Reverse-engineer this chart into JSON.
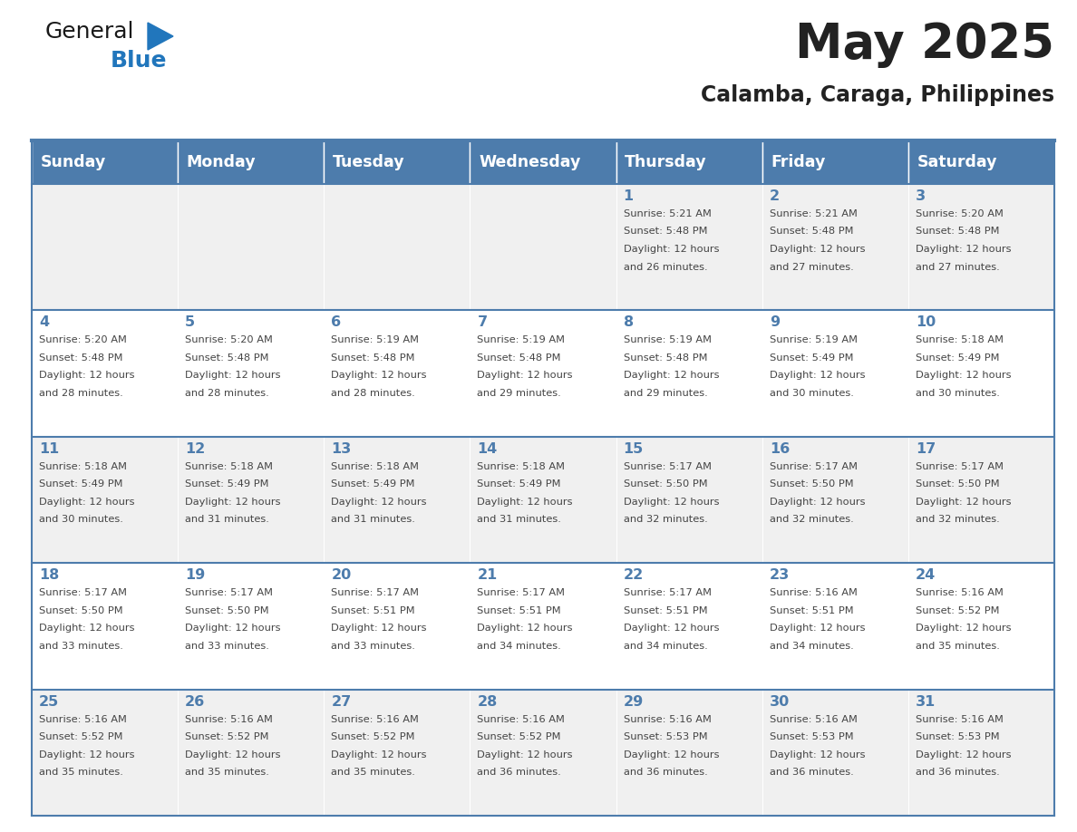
{
  "title": "May 2025",
  "subtitle": "Calamba, Caraga, Philippines",
  "header_bg_color": "#4d7cac",
  "header_text_color": "#ffffff",
  "weekdays": [
    "Sunday",
    "Monday",
    "Tuesday",
    "Wednesday",
    "Thursday",
    "Friday",
    "Saturday"
  ],
  "row_colors": [
    "#f0f0f0",
    "#ffffff"
  ],
  "line_color": "#4d7cac",
  "text_color": "#444444",
  "day_num_color": "#4d7cac",
  "calendar_data": [
    [
      {
        "day": "",
        "sunrise": "",
        "sunset": "",
        "daylight": ""
      },
      {
        "day": "",
        "sunrise": "",
        "sunset": "",
        "daylight": ""
      },
      {
        "day": "",
        "sunrise": "",
        "sunset": "",
        "daylight": ""
      },
      {
        "day": "",
        "sunrise": "",
        "sunset": "",
        "daylight": ""
      },
      {
        "day": "1",
        "sunrise": "5:21 AM",
        "sunset": "5:48 PM",
        "daylight": "12 hours and 26 minutes."
      },
      {
        "day": "2",
        "sunrise": "5:21 AM",
        "sunset": "5:48 PM",
        "daylight": "12 hours and 27 minutes."
      },
      {
        "day": "3",
        "sunrise": "5:20 AM",
        "sunset": "5:48 PM",
        "daylight": "12 hours and 27 minutes."
      }
    ],
    [
      {
        "day": "4",
        "sunrise": "5:20 AM",
        "sunset": "5:48 PM",
        "daylight": "12 hours and 28 minutes."
      },
      {
        "day": "5",
        "sunrise": "5:20 AM",
        "sunset": "5:48 PM",
        "daylight": "12 hours and 28 minutes."
      },
      {
        "day": "6",
        "sunrise": "5:19 AM",
        "sunset": "5:48 PM",
        "daylight": "12 hours and 28 minutes."
      },
      {
        "day": "7",
        "sunrise": "5:19 AM",
        "sunset": "5:48 PM",
        "daylight": "12 hours and 29 minutes."
      },
      {
        "day": "8",
        "sunrise": "5:19 AM",
        "sunset": "5:48 PM",
        "daylight": "12 hours and 29 minutes."
      },
      {
        "day": "9",
        "sunrise": "5:19 AM",
        "sunset": "5:49 PM",
        "daylight": "12 hours and 30 minutes."
      },
      {
        "day": "10",
        "sunrise": "5:18 AM",
        "sunset": "5:49 PM",
        "daylight": "12 hours and 30 minutes."
      }
    ],
    [
      {
        "day": "11",
        "sunrise": "5:18 AM",
        "sunset": "5:49 PM",
        "daylight": "12 hours and 30 minutes."
      },
      {
        "day": "12",
        "sunrise": "5:18 AM",
        "sunset": "5:49 PM",
        "daylight": "12 hours and 31 minutes."
      },
      {
        "day": "13",
        "sunrise": "5:18 AM",
        "sunset": "5:49 PM",
        "daylight": "12 hours and 31 minutes."
      },
      {
        "day": "14",
        "sunrise": "5:18 AM",
        "sunset": "5:49 PM",
        "daylight": "12 hours and 31 minutes."
      },
      {
        "day": "15",
        "sunrise": "5:17 AM",
        "sunset": "5:50 PM",
        "daylight": "12 hours and 32 minutes."
      },
      {
        "day": "16",
        "sunrise": "5:17 AM",
        "sunset": "5:50 PM",
        "daylight": "12 hours and 32 minutes."
      },
      {
        "day": "17",
        "sunrise": "5:17 AM",
        "sunset": "5:50 PM",
        "daylight": "12 hours and 32 minutes."
      }
    ],
    [
      {
        "day": "18",
        "sunrise": "5:17 AM",
        "sunset": "5:50 PM",
        "daylight": "12 hours and 33 minutes."
      },
      {
        "day": "19",
        "sunrise": "5:17 AM",
        "sunset": "5:50 PM",
        "daylight": "12 hours and 33 minutes."
      },
      {
        "day": "20",
        "sunrise": "5:17 AM",
        "sunset": "5:51 PM",
        "daylight": "12 hours and 33 minutes."
      },
      {
        "day": "21",
        "sunrise": "5:17 AM",
        "sunset": "5:51 PM",
        "daylight": "12 hours and 34 minutes."
      },
      {
        "day": "22",
        "sunrise": "5:17 AM",
        "sunset": "5:51 PM",
        "daylight": "12 hours and 34 minutes."
      },
      {
        "day": "23",
        "sunrise": "5:16 AM",
        "sunset": "5:51 PM",
        "daylight": "12 hours and 34 minutes."
      },
      {
        "day": "24",
        "sunrise": "5:16 AM",
        "sunset": "5:52 PM",
        "daylight": "12 hours and 35 minutes."
      }
    ],
    [
      {
        "day": "25",
        "sunrise": "5:16 AM",
        "sunset": "5:52 PM",
        "daylight": "12 hours and 35 minutes."
      },
      {
        "day": "26",
        "sunrise": "5:16 AM",
        "sunset": "5:52 PM",
        "daylight": "12 hours and 35 minutes."
      },
      {
        "day": "27",
        "sunrise": "5:16 AM",
        "sunset": "5:52 PM",
        "daylight": "12 hours and 35 minutes."
      },
      {
        "day": "28",
        "sunrise": "5:16 AM",
        "sunset": "5:52 PM",
        "daylight": "12 hours and 36 minutes."
      },
      {
        "day": "29",
        "sunrise": "5:16 AM",
        "sunset": "5:53 PM",
        "daylight": "12 hours and 36 minutes."
      },
      {
        "day": "30",
        "sunrise": "5:16 AM",
        "sunset": "5:53 PM",
        "daylight": "12 hours and 36 minutes."
      },
      {
        "day": "31",
        "sunrise": "5:16 AM",
        "sunset": "5:53 PM",
        "daylight": "12 hours and 36 minutes."
      }
    ]
  ],
  "logo_color_general": "#1a1a1a",
  "logo_color_blue": "#2176bc",
  "logo_triangle_color": "#2176bc",
  "fig_width": 11.88,
  "fig_height": 9.18,
  "dpi": 100
}
